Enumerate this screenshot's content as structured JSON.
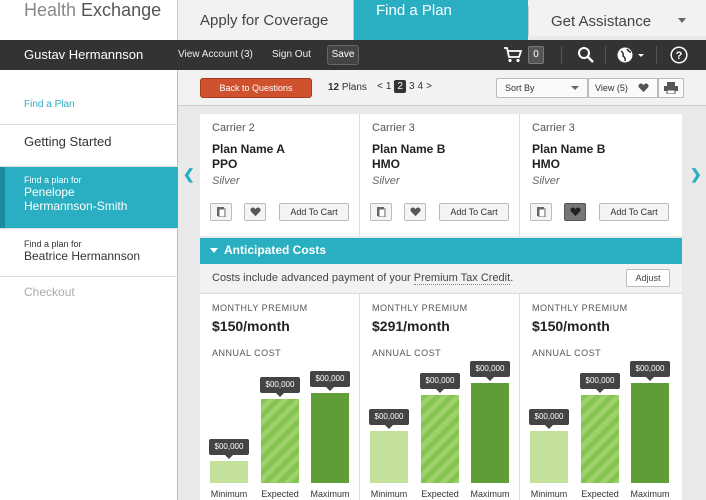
{
  "brand": {
    "part1": "Health",
    "part2": "Exchange"
  },
  "top_tabs": {
    "apply": "Apply for Coverage",
    "find": "Find a Plan",
    "assist": "Get Assistance"
  },
  "account_bar": {
    "user": "Gustav Hermannson",
    "view_account": "View Account (3)",
    "sign_out": "Sign Out",
    "save": "Save",
    "cart_count": "0"
  },
  "sidebar": {
    "find_plan_link": "Find a Plan",
    "getting_started": "Getting Started",
    "active": {
      "small": "Find a plan for",
      "name": "Penelope Hermannson-Smith"
    },
    "other": {
      "small": "Find a plan for",
      "name": "Beatrice Hermannson"
    },
    "checkout": "Checkout"
  },
  "toolbar": {
    "back": "Back to Questions",
    "plans_count": "12",
    "plans_label": "Plans",
    "pager": {
      "prev": "<",
      "pages": [
        "1",
        "2",
        "3",
        "4"
      ],
      "current": "2",
      "next": ">"
    },
    "sort_by": "Sort By",
    "view": "View (5)"
  },
  "plans": [
    {
      "carrier": "Carrier 2",
      "name": "Plan Name A",
      "type": "PPO",
      "tier": "Silver",
      "add_to_cart": "Add To Cart",
      "favorited": false
    },
    {
      "carrier": "Carrier 3",
      "name": "Plan Name B",
      "type": "HMO",
      "tier": "Silver",
      "add_to_cart": "Add To Cart",
      "favorited": false
    },
    {
      "carrier": "Carrier 3",
      "name": "Plan Name B",
      "type": "HMO",
      "tier": "Silver",
      "add_to_cart": "Add To Cart",
      "favorited": true
    }
  ],
  "costs": {
    "heading": "Anticipated Costs",
    "note_prefix": "Costs include advanced payment of your",
    "note_link": "Premium Tax Credit",
    "note_suffix": ".",
    "adjust": "Adjust",
    "monthly_premium_label": "MONTHLY PREMIUM",
    "annual_cost_label": "ANNUAL COST",
    "bar_labels": {
      "min": "Minimum",
      "exp": "Expected",
      "max": "Maximum"
    },
    "columns": [
      {
        "premium": "$150/month",
        "min_tag": "$00,000",
        "exp_tag": "$00,000",
        "max_tag": "$00,000",
        "min_level": 0.22,
        "exp_level": 0.84,
        "max_level": 0.9
      },
      {
        "premium": "$291/month",
        "min_tag": "$00,000",
        "exp_tag": "$00,000",
        "max_tag": "$00,000",
        "min_level": 0.52,
        "exp_level": 0.88,
        "max_level": 1.0
      },
      {
        "premium": "$150/month",
        "min_tag": "$00,000",
        "exp_tag": "$00,000",
        "max_tag": "$00,000",
        "min_level": 0.52,
        "exp_level": 0.88,
        "max_level": 1.0
      }
    ]
  }
}
